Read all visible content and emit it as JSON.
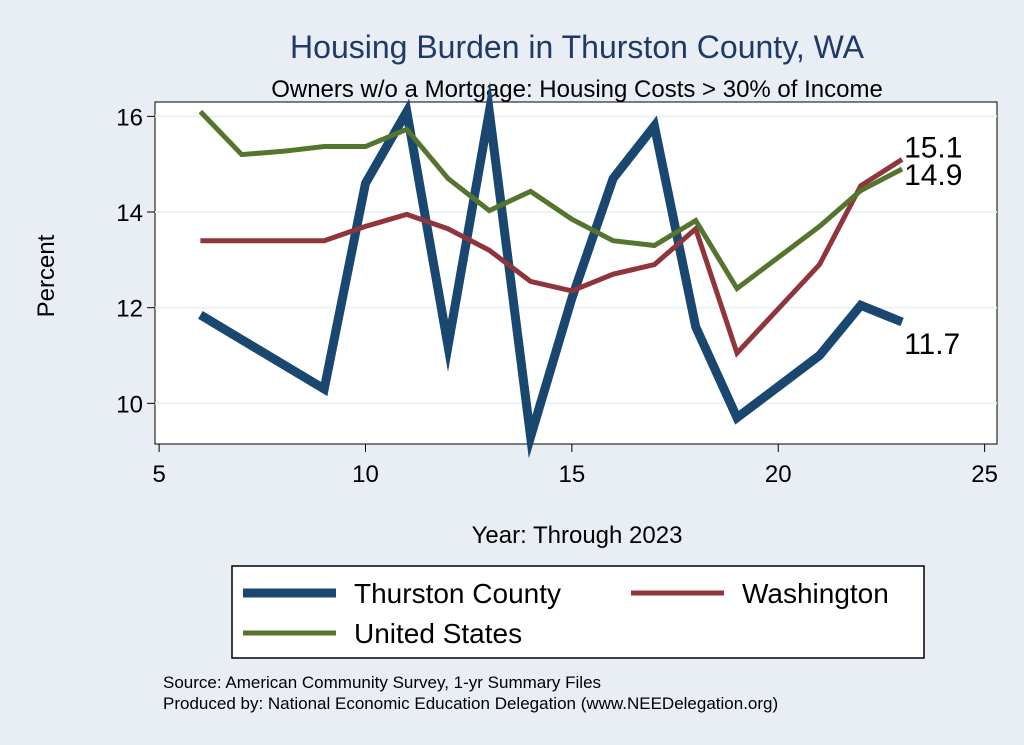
{
  "chart_data": {
    "type": "line",
    "title": "Housing Burden in Thurston County, WA",
    "subtitle": "Owners w/o a Mortgage: Housing Costs > 30% of Income",
    "xlabel": "Year: Through 2023",
    "ylabel": "Percent",
    "xlim": [
      4.9,
      25.3
    ],
    "ylim": [
      9.15,
      16.3
    ],
    "xticks": [
      5,
      10,
      15,
      20,
      25
    ],
    "yticks": [
      10,
      12,
      14,
      16
    ],
    "grid": true,
    "legend_position": "bottom",
    "series": [
      {
        "name": "Thurston County",
        "color": "#1a476f",
        "x": [
          6,
          9,
          10,
          11,
          12,
          13,
          14,
          15,
          16,
          17,
          18,
          19,
          21,
          22,
          23
        ],
        "y": [
          11.85,
          10.3,
          14.6,
          16.1,
          11.2,
          16.1,
          9.3,
          12.2,
          14.7,
          15.8,
          11.6,
          9.7,
          11.0,
          12.05,
          11.7
        ],
        "end_label": "11.7"
      },
      {
        "name": "Washington",
        "color": "#90353b",
        "x": [
          6,
          9,
          10,
          11,
          12,
          13,
          14,
          15,
          16,
          17,
          18,
          19,
          21,
          22,
          23
        ],
        "y": [
          13.4,
          13.4,
          13.7,
          13.95,
          13.65,
          13.2,
          12.55,
          12.35,
          12.7,
          12.9,
          13.65,
          11.05,
          12.9,
          14.55,
          15.1
        ],
        "end_label": "15.1"
      },
      {
        "name": "United States",
        "color": "#55752f",
        "x": [
          6,
          7,
          8,
          9,
          10,
          11,
          12,
          13,
          14,
          15,
          16,
          17,
          18,
          19,
          21,
          22,
          23
        ],
        "y": [
          16.1,
          15.2,
          15.27,
          15.37,
          15.37,
          15.73,
          14.7,
          14.03,
          14.43,
          13.85,
          13.4,
          13.3,
          13.82,
          12.4,
          13.7,
          14.45,
          14.9
        ],
        "end_label": "14.9"
      }
    ],
    "legend": [
      "Thurston County",
      "Washington",
      "United States"
    ],
    "source": "Source: American Community Survey, 1-yr Summary Files",
    "producer": "Produced by: National Economic Education Delegation (www.NEEDelegation.org)"
  }
}
